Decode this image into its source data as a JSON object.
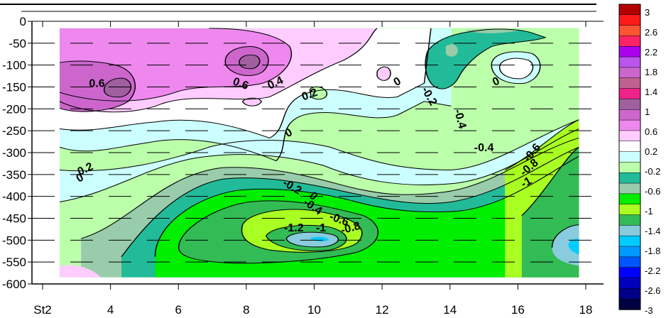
{
  "chart_data": {
    "type": "heatmap",
    "title": "",
    "xlabel": "",
    "ylabel": "",
    "x_ticks": [
      {
        "value": 2,
        "label": "St2"
      },
      {
        "value": 4,
        "label": "4"
      },
      {
        "value": 6,
        "label": "6"
      },
      {
        "value": 8,
        "label": "8"
      },
      {
        "value": 10,
        "label": "10"
      },
      {
        "value": 12,
        "label": "12"
      },
      {
        "value": 14,
        "label": "14"
      },
      {
        "value": 16,
        "label": "16"
      },
      {
        "value": 18,
        "label": "18"
      }
    ],
    "y_ticks": [
      0,
      -50,
      -100,
      -150,
      -200,
      -250,
      -300,
      -350,
      -400,
      -450,
      -500,
      -550,
      -600
    ],
    "xlim": [
      2,
      18
    ],
    "ylim": [
      -600,
      0
    ],
    "data_extent": {
      "x": [
        2.5,
        17.8
      ],
      "y": [
        -585,
        -15
      ]
    },
    "grid": "dashed horizontal lines",
    "colorbar": {
      "placement": "right",
      "levels": [
        {
          "label": "3",
          "color": "#b30000"
        },
        {
          "label": "2.6",
          "color": "#ff1a1a"
        },
        {
          "label": "2.2",
          "color": "#ff5533"
        },
        {
          "label": "2.2",
          "color": "#ff2266"
        },
        {
          "label": "1.8",
          "color": "#aa00ee"
        },
        {
          "label": "1.8",
          "color": "#bb55ee"
        },
        {
          "label": "1.4",
          "color": "#cc66cc"
        },
        {
          "label": "1.4",
          "color": "#c06090"
        },
        {
          "label": "1",
          "color": "#ee2288"
        },
        {
          "label": "1",
          "color": "#a060a0"
        },
        {
          "label": "0.6",
          "color": "#cc66cc"
        },
        {
          "label": "0.6",
          "color": "#ee88ee"
        },
        {
          "label": "0.2",
          "color": "#ffccff"
        },
        {
          "label": "0.2",
          "color": "#ffffff"
        },
        {
          "label": "-0.2",
          "color": "#ccffff"
        },
        {
          "label": "-0.2",
          "color": "#bbffaa"
        },
        {
          "label": "-0.6",
          "color": "#22bb99"
        },
        {
          "label": "-0.6",
          "color": "#99ccaa"
        },
        {
          "label": "-1",
          "color": "#00ee00"
        },
        {
          "label": "-1",
          "color": "#aaff22"
        },
        {
          "label": "-1.4",
          "color": "#33bb55"
        },
        {
          "label": "-1.4",
          "color": "#88ccdd"
        },
        {
          "label": "-1.8",
          "color": "#00ccff"
        },
        {
          "label": "-1.8",
          "color": "#0099ff"
        },
        {
          "label": "-2.2",
          "color": "#0055ff"
        },
        {
          "label": "-2.2",
          "color": "#0000ff"
        },
        {
          "label": "-2.6",
          "color": "#0000bb"
        },
        {
          "label": "-2.6",
          "color": "#000088"
        },
        {
          "label": "-3",
          "color": "#000044"
        }
      ],
      "printed_labels": [
        "3",
        "2.6",
        "2.2",
        "1.8",
        "1.4",
        "1",
        "0.6",
        "0.2",
        "-0.2",
        "-0.6",
        "-1",
        "-1.4",
        "-1.8",
        "-2.2",
        "-2.6",
        "-3"
      ]
    },
    "contour_labels": [
      {
        "text": "0.6",
        "x": 3.6,
        "y": -150,
        "angle": 0
      },
      {
        "text": "0.6",
        "x": 7.8,
        "y": -150,
        "angle": 20
      },
      {
        "text": "0.4",
        "x": 8.9,
        "y": -148,
        "angle": -25
      },
      {
        "text": "0.2",
        "x": 9.9,
        "y": -175,
        "angle": -20
      },
      {
        "text": "0",
        "x": 9.3,
        "y": -262,
        "angle": -30
      },
      {
        "text": "0",
        "x": 12.5,
        "y": -145,
        "angle": -30
      },
      {
        "text": "-0.2",
        "x": 13.3,
        "y": -175,
        "angle": 60
      },
      {
        "text": "-0.4",
        "x": 14.2,
        "y": -225,
        "angle": 75
      },
      {
        "text": "0",
        "x": 15.4,
        "y": -145,
        "angle": -25
      },
      {
        "text": "-0.4",
        "x": 15.0,
        "y": -297,
        "angle": 0
      },
      {
        "text": "-0.6",
        "x": 16.5,
        "y": -305,
        "angle": -50
      },
      {
        "text": "-0.8",
        "x": 16.4,
        "y": -340,
        "angle": -40
      },
      {
        "text": "-1",
        "x": 16.3,
        "y": -375,
        "angle": -30
      },
      {
        "text": "0.2",
        "x": 3.3,
        "y": -345,
        "angle": -25
      },
      {
        "text": "0",
        "x": 3.15,
        "y": -365,
        "angle": -30
      },
      {
        "text": "-0.2",
        "x": 9.3,
        "y": -385,
        "angle": 30
      },
      {
        "text": "0",
        "x": 9.9,
        "y": -405,
        "angle": 45
      },
      {
        "text": "-0.4",
        "x": 9.9,
        "y": -430,
        "angle": 35
      },
      {
        "text": "-0.6",
        "x": 10.7,
        "y": -460,
        "angle": 20
      },
      {
        "text": "-1.2",
        "x": 9.4,
        "y": -480,
        "angle": 0
      },
      {
        "text": "-1",
        "x": 10.2,
        "y": -480,
        "angle": 0
      },
      {
        "text": "-0.8",
        "x": 11.1,
        "y": -480,
        "angle": -15
      }
    ]
  }
}
